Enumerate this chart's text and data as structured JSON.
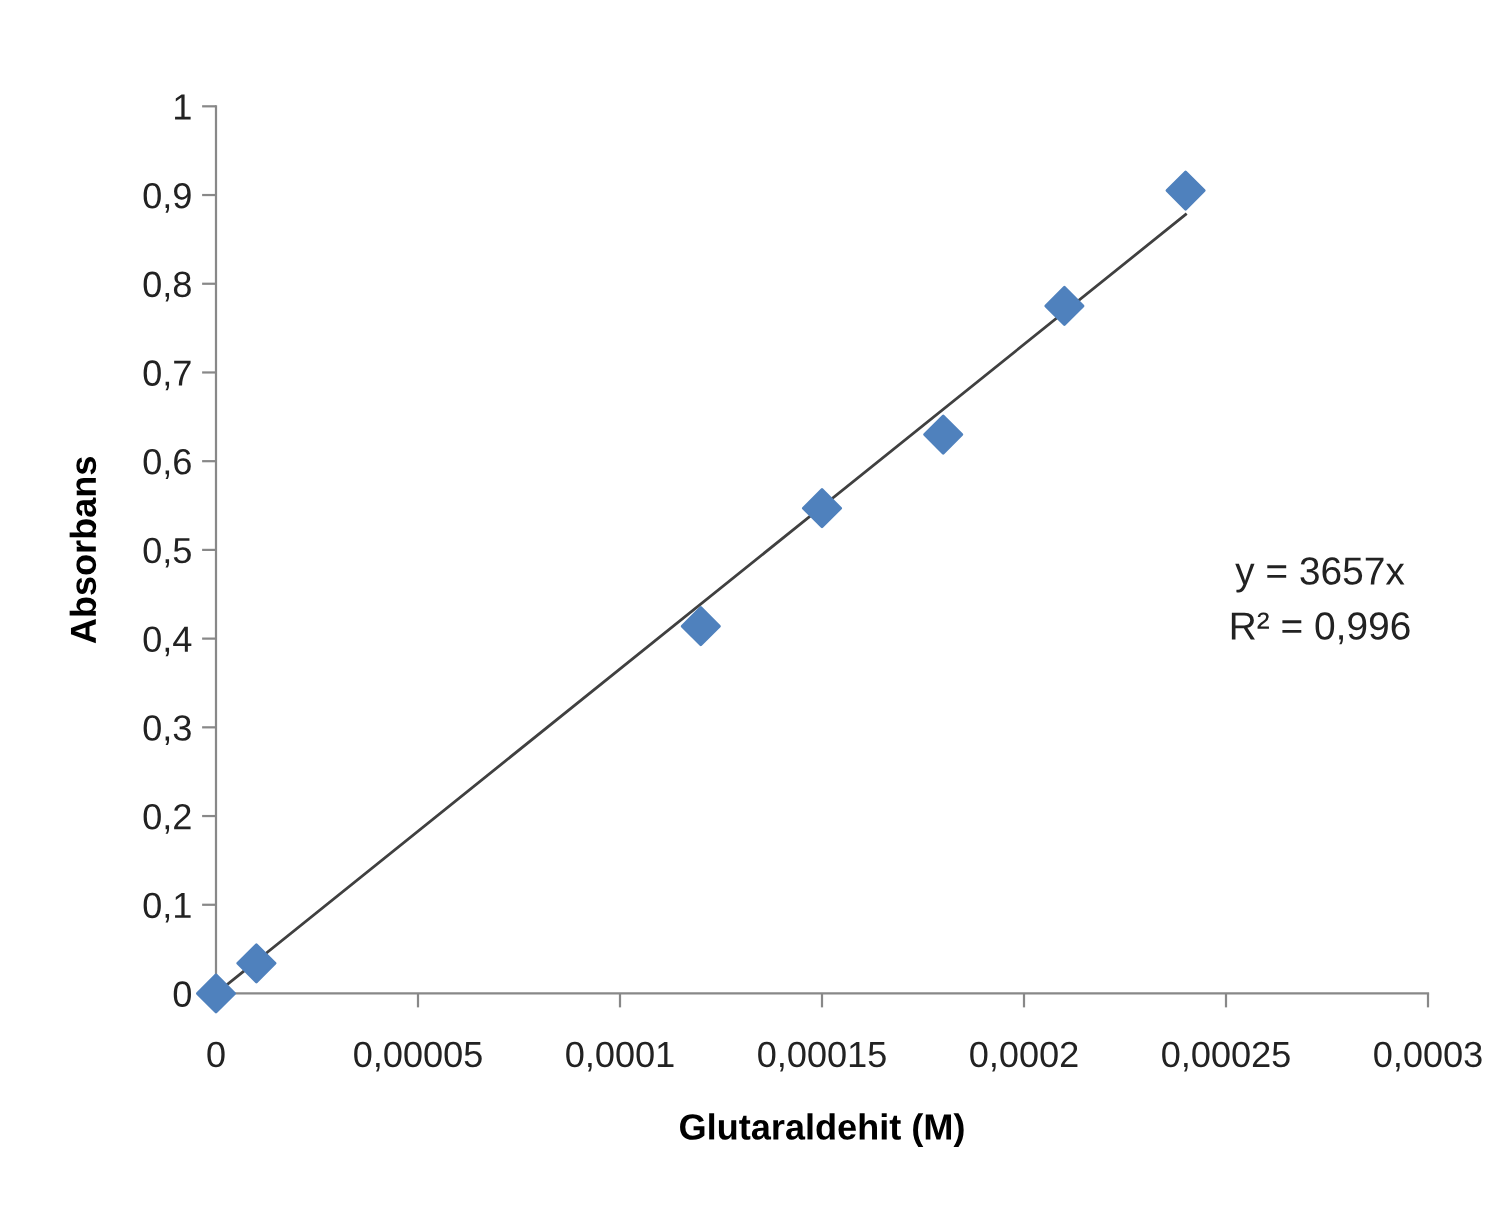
{
  "chart_data": {
    "type": "scatter",
    "xlabel": "Glutaraldehit (M)",
    "ylabel": "Absorbans",
    "series": [
      {
        "color": "#4f81bd",
        "marker": "diamond",
        "x": [
          0,
          1e-05,
          0.00012,
          0.00015,
          0.00018,
          0.00021,
          0.00024
        ],
        "values": [
          0,
          0.034,
          0.414,
          0.547,
          0.63,
          0.775,
          0.905
        ]
      },
      {
        "type": "line",
        "color": "#404040",
        "marker": "none",
        "line_style": "solid",
        "x": [
          0,
          0.00024
        ],
        "values": [
          0,
          0.878
        ]
      }
    ],
    "xlim": [
      0,
      0.0003
    ],
    "xticks": [
      0,
      {
        "value": 5e-05,
        "label": "0,00005"
      },
      {
        "value": 0.0001,
        "label": "0,0001"
      },
      {
        "value": 0.00015,
        "label": "0,00015"
      },
      {
        "value": 0.0002,
        "label": "0,0002"
      },
      {
        "value": 0.00025,
        "label": "0,00025"
      },
      {
        "value": 0.0003,
        "label": "0,0003"
      }
    ],
    "ylim": [
      0,
      1
    ],
    "yticks": [
      0,
      {
        "value": 0.1,
        "label": "0,1"
      },
      {
        "value": 0.2,
        "label": "0,2"
      },
      {
        "value": 0.3,
        "label": "0,3"
      },
      {
        "value": 0.4,
        "label": "0,4"
      },
      {
        "value": 0.5,
        "label": "0,5"
      },
      {
        "value": 0.6,
        "label": "0,6"
      },
      {
        "value": 0.7,
        "label": "0,7"
      },
      {
        "value": 0.8,
        "label": "0,8"
      },
      {
        "value": 0.9,
        "label": "0,9"
      },
      1
    ],
    "grid": false,
    "legend": false,
    "annotations": [
      "y = 3657x",
      "R² = 0,996"
    ]
  }
}
